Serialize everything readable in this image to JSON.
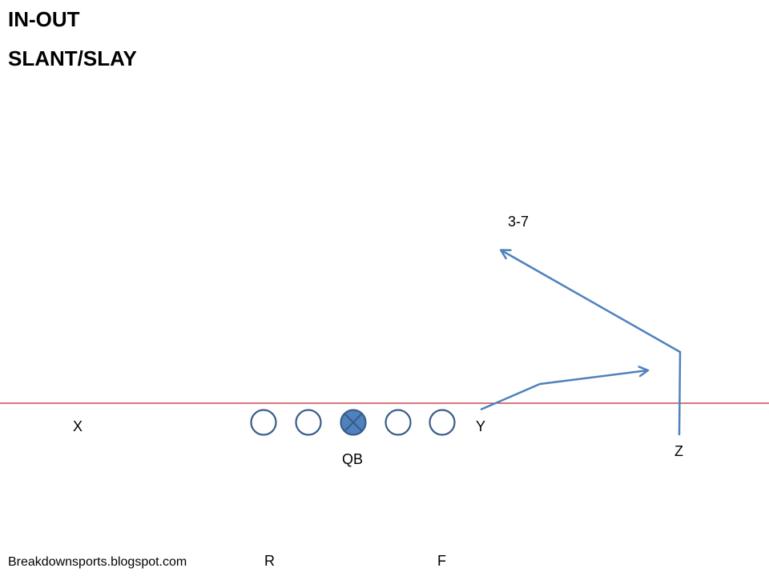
{
  "title": {
    "line1": "IN-OUT",
    "line2": "SLANT/SLAY"
  },
  "labels": {
    "route_depth": "3-7",
    "x": "X",
    "y": "Y",
    "z": "Z",
    "qb": "QB",
    "r": "R",
    "f": "F",
    "credit": "Breakdownsports.blogspot.com"
  },
  "colors": {
    "line_of_scrimmage": "#c0282d",
    "route": "#4f81bd",
    "player_outline": "#385d8a",
    "center_fill": "#4f81bd"
  },
  "linemen_count": 5
}
